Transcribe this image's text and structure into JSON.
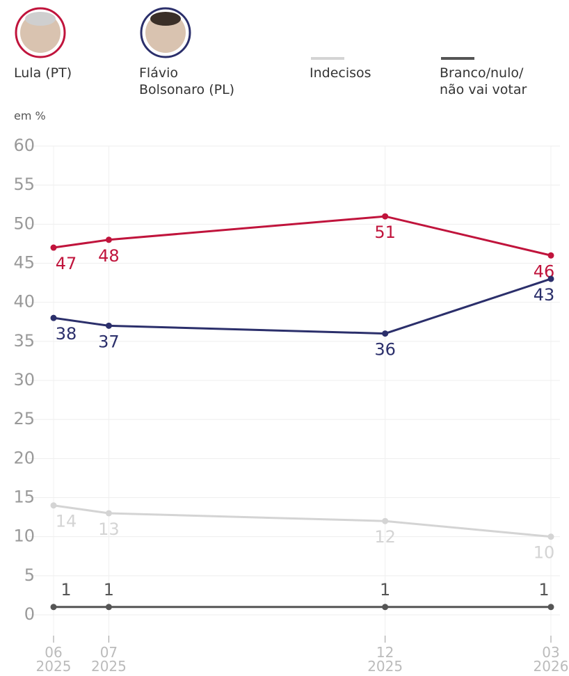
{
  "chart_data": {
    "type": "line",
    "unit_label": "em %",
    "x": [
      "2025-06",
      "2025-07",
      "2025-12",
      "2026-03"
    ],
    "xticks": [
      {
        "value": "2025-06",
        "label": "06\n2025"
      },
      {
        "value": "2025-07",
        "label": "07\n2025"
      },
      {
        "value": "2025-12",
        "label": "12\n2025"
      },
      {
        "value": "2026-03",
        "label": "03\n2026"
      }
    ],
    "ylim": [
      0,
      60
    ],
    "yticks": [
      0,
      5,
      10,
      15,
      20,
      25,
      30,
      35,
      40,
      45,
      50,
      55,
      60
    ],
    "grid": true,
    "series": [
      {
        "name": "Lula (PT)",
        "color": "#c0143c",
        "values": [
          47,
          48,
          51,
          46
        ]
      },
      {
        "name": "Flávio\nBolsonaro (PL)",
        "color": "#2b2f6b",
        "values": [
          38,
          37,
          36,
          43
        ]
      },
      {
        "name": "Indecisos",
        "color": "#d4d4d4",
        "values": [
          14,
          13,
          12,
          10
        ]
      },
      {
        "name": "Branco/nulo/\nnão vai votar",
        "color": "#555555",
        "values": [
          1,
          1,
          1,
          1
        ]
      }
    ]
  }
}
